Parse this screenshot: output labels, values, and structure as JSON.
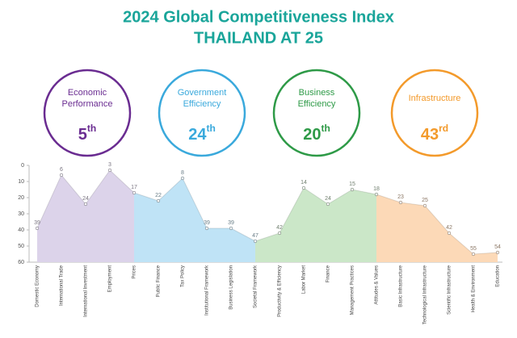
{
  "title": "2024 Global Competitiveness Index",
  "subtitle": "THAILAND AT 25",
  "pillars": [
    {
      "name": [
        "Economic",
        "Performance"
      ],
      "rank": 5,
      "suffix": "th",
      "color": "#6a2c91"
    },
    {
      "name": [
        "Government",
        "Efficiency"
      ],
      "rank": 24,
      "suffix": "th",
      "color": "#3aa9dc"
    },
    {
      "name": [
        "Business",
        "Efficiency"
      ],
      "rank": 20,
      "suffix": "th",
      "color": "#2e9a47"
    },
    {
      "name": [
        "Infrastructure"
      ],
      "rank": 43,
      "suffix": "rd",
      "color": "#f39a2b"
    }
  ],
  "chart_data": {
    "type": "area",
    "categories": [
      "Domestic Economy",
      "International Trade",
      "International Investment",
      "Employment",
      "Prices",
      "Public Finance",
      "Tax Policy",
      "Institutional Framework",
      "Business Legislation",
      "Societal Framework",
      "Productivity & Efficiency",
      "Labor Market",
      "Finance",
      "Management Practices",
      "Attitudes & Values",
      "Basic Infrastructure",
      "Technological Infrastructure",
      "Scientific Infrastructure",
      "Health & Environment",
      "Education"
    ],
    "series": [
      {
        "color": "#dcd3ea",
        "values": [
          39,
          6,
          24,
          3,
          17,
          null,
          null,
          null,
          null,
          null,
          null,
          null,
          null,
          null,
          null,
          null,
          null,
          null,
          null,
          null
        ]
      },
      {
        "color": "#bfe3f6",
        "values": [
          null,
          null,
          null,
          null,
          17,
          22,
          8,
          39,
          39,
          47,
          null,
          null,
          null,
          null,
          null,
          null,
          null,
          null,
          null,
          null
        ]
      },
      {
        "color": "#cbe7c8",
        "values": [
          null,
          null,
          null,
          null,
          null,
          null,
          null,
          null,
          null,
          47,
          42,
          14,
          24,
          15,
          18,
          null,
          null,
          null,
          null,
          null
        ]
      },
      {
        "color": "#fcd9b7",
        "values": [
          null,
          null,
          null,
          null,
          null,
          null,
          null,
          null,
          null,
          null,
          null,
          null,
          null,
          null,
          18,
          23,
          25,
          42,
          55,
          54
        ]
      }
    ],
    "ylim": [
      0,
      60
    ],
    "yticks": [
      0,
      10,
      20,
      30,
      40,
      50,
      60
    ],
    "inverted": true
  }
}
